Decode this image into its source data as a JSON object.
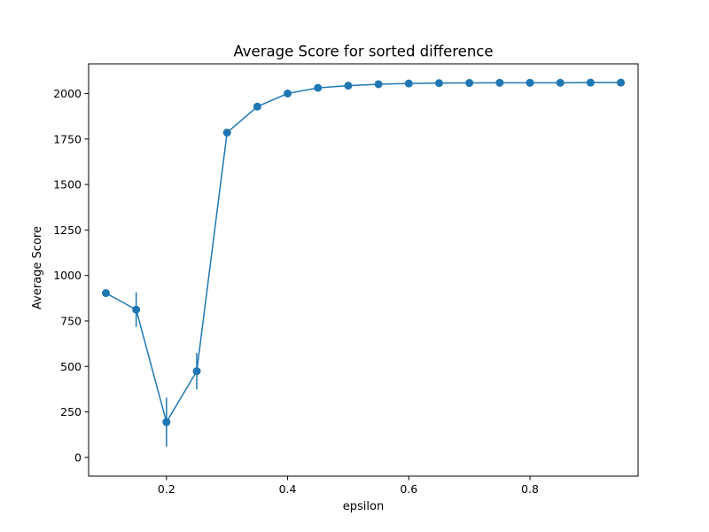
{
  "chart_data": {
    "type": "line",
    "title": "Average Score for sorted difference",
    "xlabel": "epsilon",
    "ylabel": "Average Score",
    "xlim": [
      0.0715,
      0.9785
    ],
    "ylim": [
      -103,
      2163
    ],
    "xticks": [
      0.2,
      0.4,
      0.6,
      0.8
    ],
    "xtick_labels": [
      "0.2",
      "0.4",
      "0.6",
      "0.8"
    ],
    "yticks": [
      0,
      250,
      500,
      750,
      1000,
      1250,
      1500,
      1750,
      2000
    ],
    "ytick_labels": [
      "0",
      "250",
      "500",
      "750",
      "1000",
      "1250",
      "1500",
      "1750",
      "2000"
    ],
    "grid": false,
    "legend": "none",
    "color": "#1f77b4",
    "series": [
      {
        "x": [
          0.1,
          0.15,
          0.2,
          0.25,
          0.3,
          0.35,
          0.4,
          0.45,
          0.5,
          0.55,
          0.6,
          0.65,
          0.7,
          0.75,
          0.8,
          0.85,
          0.9,
          0.95
        ],
        "y": [
          903,
          812,
          194,
          474,
          1785,
          1928,
          2000,
          2031,
          2043,
          2051,
          2055,
          2057,
          2058,
          2059,
          2059,
          2059,
          2060,
          2060
        ],
        "yerr": [
          0,
          95,
          135,
          100,
          8,
          6,
          4,
          3,
          2,
          2,
          1,
          1,
          1,
          1,
          1,
          1,
          1,
          1
        ]
      }
    ]
  }
}
